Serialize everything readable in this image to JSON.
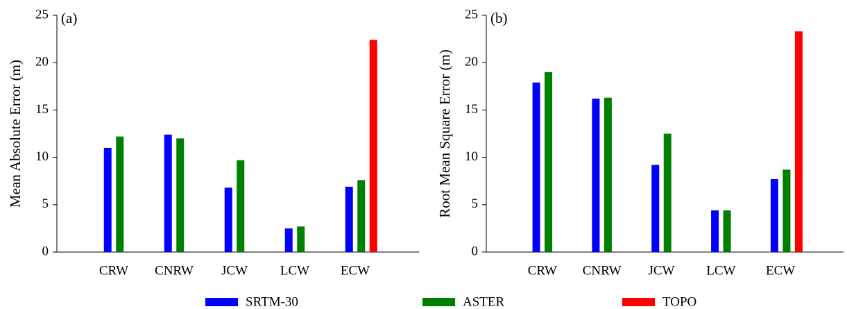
{
  "chart_data": [
    {
      "type": "bar",
      "label": "(a)",
      "ylabel": "Mean Absolute Error (m)",
      "categories": [
        "CRW",
        "CNRW",
        "JCW",
        "LCW",
        "ECW"
      ],
      "series": [
        {
          "name": "SRTM-30",
          "color": "#0000ff",
          "values": [
            11.0,
            12.4,
            6.8,
            2.5,
            6.9
          ]
        },
        {
          "name": "ASTER",
          "color": "#008000",
          "values": [
            12.2,
            12.0,
            9.7,
            2.7,
            7.6
          ]
        },
        {
          "name": "TOPO",
          "color": "#ff0000",
          "values": [
            null,
            null,
            null,
            null,
            22.4
          ]
        }
      ],
      "ylim": [
        0,
        25
      ],
      "yticks": [
        0,
        5,
        10,
        15,
        20,
        25
      ]
    },
    {
      "type": "bar",
      "label": "(b)",
      "ylabel": "Root Mean Square Error (m)",
      "categories": [
        "CRW",
        "CNRW",
        "JCW",
        "LCW",
        "ECW"
      ],
      "series": [
        {
          "name": "SRTM-30",
          "color": "#0000ff",
          "values": [
            17.9,
            16.2,
            9.2,
            4.4,
            7.7
          ]
        },
        {
          "name": "ASTER",
          "color": "#008000",
          "values": [
            19.0,
            16.3,
            12.5,
            4.4,
            8.7
          ]
        },
        {
          "name": "TOPO",
          "color": "#ff0000",
          "values": [
            null,
            null,
            null,
            null,
            23.3
          ]
        }
      ],
      "ylim": [
        0,
        25
      ],
      "yticks": [
        0,
        5,
        10,
        15,
        20,
        25
      ]
    }
  ]
}
